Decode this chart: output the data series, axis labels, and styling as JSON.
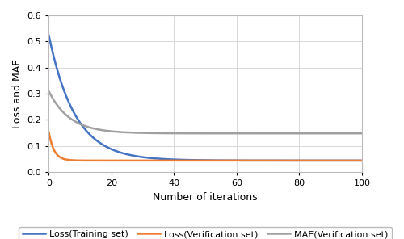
{
  "title": "",
  "xlabel": "Number of iterations",
  "ylabel": "Loss and MAE",
  "xlim": [
    0,
    100
  ],
  "ylim": [
    0,
    0.6
  ],
  "yticks": [
    0.0,
    0.1,
    0.2,
    0.3,
    0.4,
    0.5,
    0.6
  ],
  "xticks": [
    0,
    20,
    40,
    60,
    80,
    100
  ],
  "lines": [
    {
      "label": "Loss(Training set)",
      "color": "#4472C4",
      "start": 0.525,
      "asymptote": 0.044,
      "decay": 0.12
    },
    {
      "label": "Loss(Verification set)",
      "color": "#ED7D31",
      "start": 0.155,
      "asymptote": 0.044,
      "decay": 0.6
    },
    {
      "label": "MAE(Verification set)",
      "color": "#A0A0A0",
      "start": 0.31,
      "asymptote": 0.148,
      "decay": 0.15
    }
  ],
  "legend_ncol": 3,
  "grid_color": "#d8d8d8",
  "background_color": "#ffffff",
  "linewidth": 1.8,
  "fontsize_labels": 9,
  "fontsize_legend": 8,
  "fontsize_ticks": 8
}
